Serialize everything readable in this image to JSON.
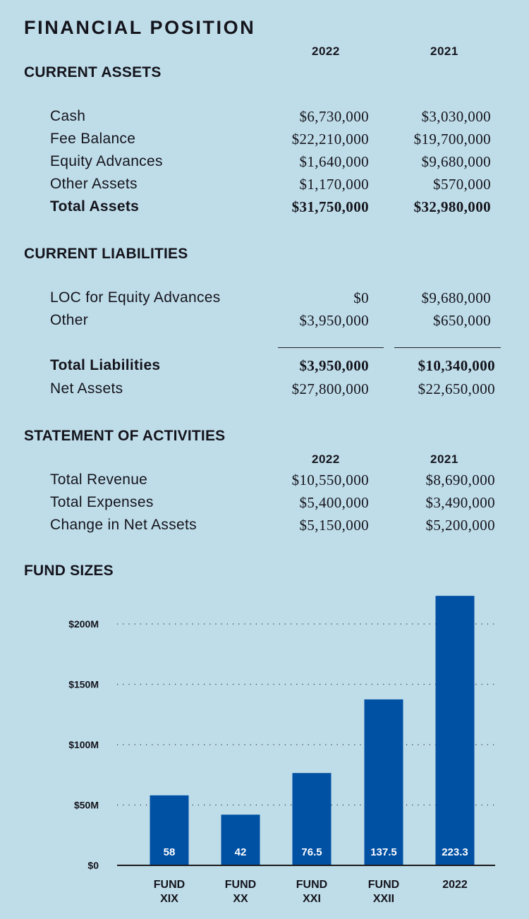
{
  "title": "FINANCIAL POSITION",
  "years": [
    "2022",
    "2021"
  ],
  "current_assets": {
    "heading": "CURRENT ASSETS",
    "rows": [
      {
        "label": "Cash",
        "v2022": "$6,730,000",
        "v2021": "$3,030,000"
      },
      {
        "label": "Fee Balance",
        "v2022": "$22,210,000",
        "v2021": "$19,700,000"
      },
      {
        "label": "Equity Advances",
        "v2022": "$1,640,000",
        "v2021": "$9,680,000"
      },
      {
        "label": "Other Assets",
        "v2022": "$1,170,000",
        "v2021": "$570,000"
      },
      {
        "label": "Total Assets",
        "v2022": "$31,750,000",
        "v2021": "$32,980,000"
      }
    ]
  },
  "current_liabilities": {
    "heading": "CURRENT LIABILITIES",
    "rows": [
      {
        "label": "LOC for Equity Advances",
        "v2022": "$0",
        "v2021": "$9,680,000"
      },
      {
        "label": "Other",
        "v2022": "$3,950,000",
        "v2021": "$650,000"
      },
      {
        "label": "Total Liabilities",
        "v2022": "$3,950,000",
        "v2021": "$10,340,000"
      },
      {
        "label": "Net Assets",
        "v2022": "$27,800,000",
        "v2021": "$22,650,000"
      }
    ]
  },
  "activities": {
    "heading": "STATEMENT OF ACTIVITIES",
    "rows": [
      {
        "label": "Total Revenue",
        "v2022": "$10,550,000",
        "v2021": "$8,690,000"
      },
      {
        "label": "Total Expenses",
        "v2022": "$5,400,000",
        "v2021": "$3,490,000"
      },
      {
        "label": "Change in Net Assets",
        "v2022": "$5,150,000",
        "v2021": "$5,200,000"
      }
    ]
  },
  "fund_sizes": {
    "heading": "FUND SIZES"
  },
  "colors": {
    "background": "#bfdde9",
    "bar": "#0050a4",
    "text": "#14141c"
  },
  "chart_data": {
    "type": "bar",
    "categories": [
      [
        "FUND",
        "XIX"
      ],
      [
        "FUND",
        "XX"
      ],
      [
        "FUND",
        "XXI"
      ],
      [
        "FUND",
        "XXII"
      ],
      [
        "2022"
      ]
    ],
    "values": [
      58,
      42,
      76.5,
      137.5,
      223.3
    ],
    "value_labels": [
      "58",
      "42",
      "76.5",
      "137.5",
      "223.3"
    ],
    "y_ticks": [
      0,
      50,
      100,
      150,
      200
    ],
    "y_tick_labels": [
      "$0",
      "$50M",
      "$100M",
      "$150M",
      "$200M"
    ],
    "ylim": [
      0,
      225
    ],
    "grid": "dotted horizontal",
    "title": "",
    "xlabel": "",
    "ylabel": ""
  }
}
